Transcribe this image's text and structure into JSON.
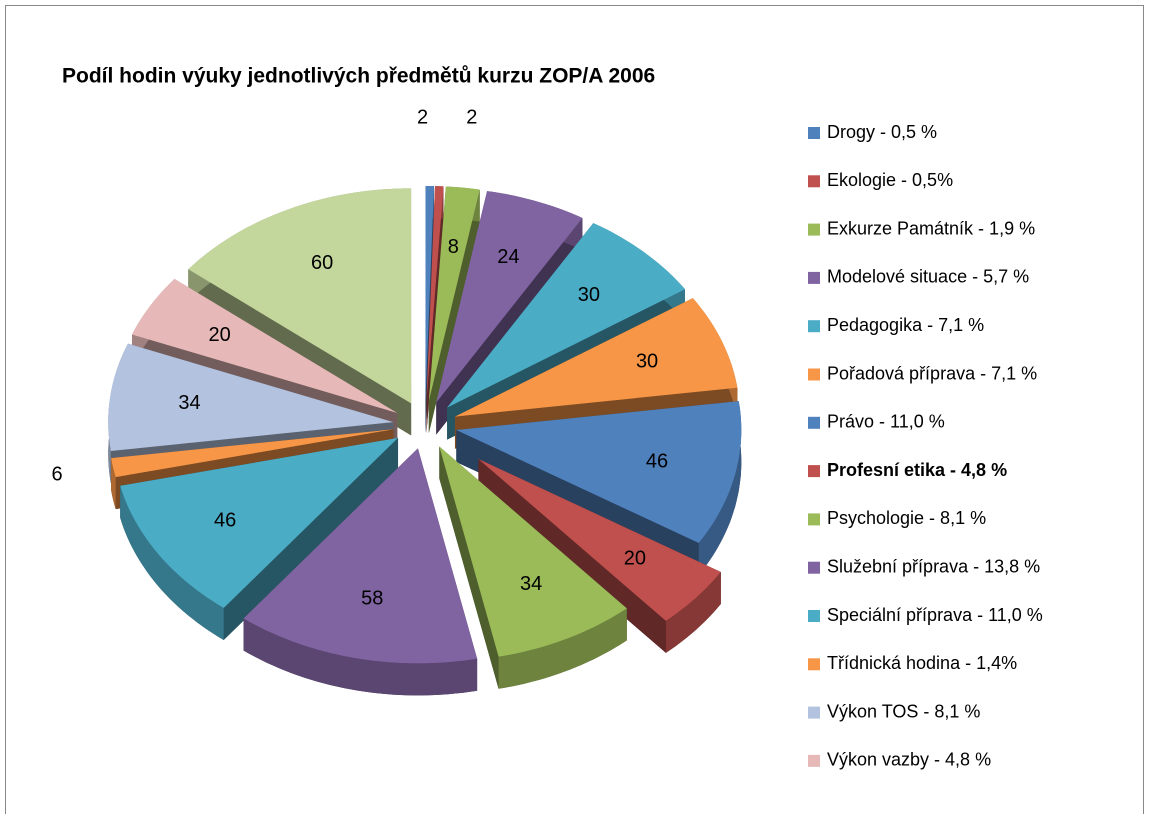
{
  "chart_data": {
    "type": "pie",
    "title": "Podíl hodin výuky jednotlivých předmětů kurzu ZOP/A 2006",
    "categories": [
      "Drogy - 0,5 %",
      "Ekologie - 0,5%",
      "Exkurze Památník - 1,9 %",
      "Modelové situace - 5,7 %",
      "Pedagogika - 7,1 %",
      "Pořadová příprava - 7,1 %",
      "Právo - 11,0 %",
      "Profesní etika - 4,8 %",
      "Psychologie - 8,1 %",
      "Služební příprava - 13,8 %",
      "Speciální příprava - 11,0 %",
      "Třídnická hodina - 1,4%",
      "Výkon TOS - 8,1 %",
      "Výkon vazby - 4,8 %",
      null
    ],
    "values": [
      2,
      2,
      8,
      24,
      30,
      30,
      46,
      20,
      34,
      58,
      46,
      6,
      34,
      20,
      60
    ],
    "colors": [
      "#4f81bd",
      "#c0504d",
      "#9bbb59",
      "#8064a2",
      "#4bacc6",
      "#f79646",
      "#4f81bd",
      "#c0504d",
      "#9bbb59",
      "#8064a2",
      "#4bacc6",
      "#f79646",
      "#b3c3df",
      "#e6b9b8",
      "#c3d69b"
    ],
    "legend": "right"
  }
}
